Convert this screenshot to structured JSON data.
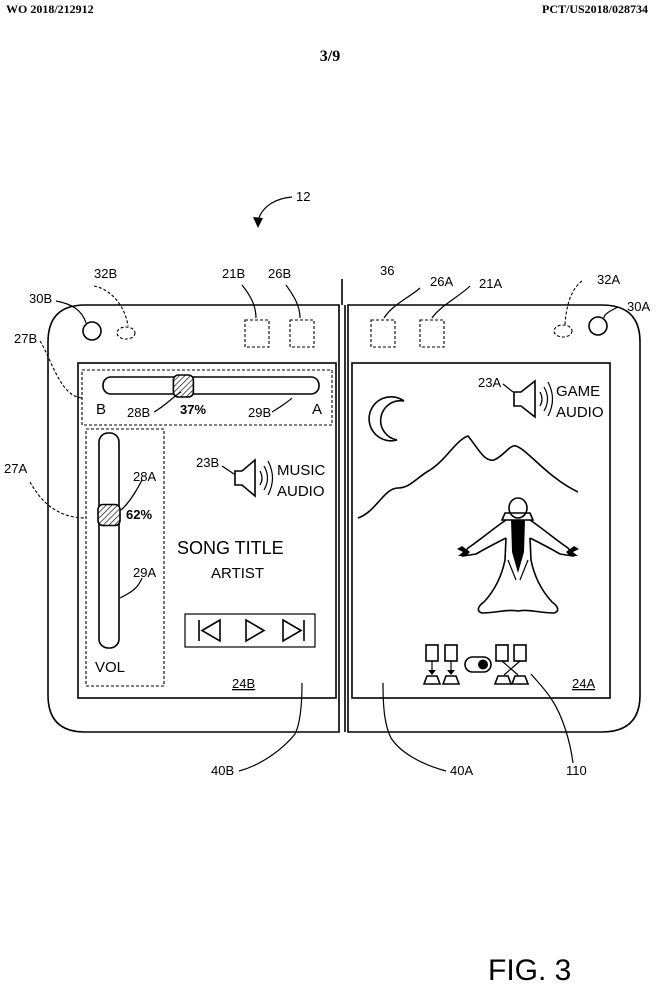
{
  "header": {
    "left": "WO 2018/212912",
    "right": "PCT/US2018/028734",
    "sheet": "3/9"
  },
  "figure_label": "FIG. 3",
  "refs": {
    "r12": "12",
    "r36": "36",
    "r21b": "21B",
    "r26b": "26B",
    "r26a": "26A",
    "r21a": "21A",
    "r32b": "32B",
    "r32a": "32A",
    "r30b": "30B",
    "r30a": "30A",
    "r27b": "27B",
    "r27a": "27A",
    "r28b": "28B",
    "r29b": "29B",
    "r28a": "28A",
    "r29a": "29A",
    "r23b": "23B",
    "r23a": "23A",
    "r24b": "24B",
    "r24a": "24A",
    "r40b": "40B",
    "r40a": "40A",
    "r110": "110"
  },
  "left_screen": {
    "balance_slider": {
      "label_left": "B",
      "label_right": "A",
      "value_text": "37%",
      "value": 0.37
    },
    "volume_slider": {
      "label": "VOL",
      "value_text": "62%",
      "value": 0.62
    },
    "audio_label_line1": "MUSIC",
    "audio_label_line2": "AUDIO",
    "song_title": "SONG TITLE",
    "artist": "ARTIST",
    "controls": [
      "previous",
      "play",
      "next"
    ]
  },
  "right_screen": {
    "audio_label_line1": "GAME",
    "audio_label_line2": "AUDIO"
  },
  "icons": [
    "speaker-icon",
    "moon-icon",
    "mountain-outline",
    "wizard-figure",
    "previous-icon",
    "play-icon",
    "next-icon",
    "toggle-switch-icon"
  ]
}
